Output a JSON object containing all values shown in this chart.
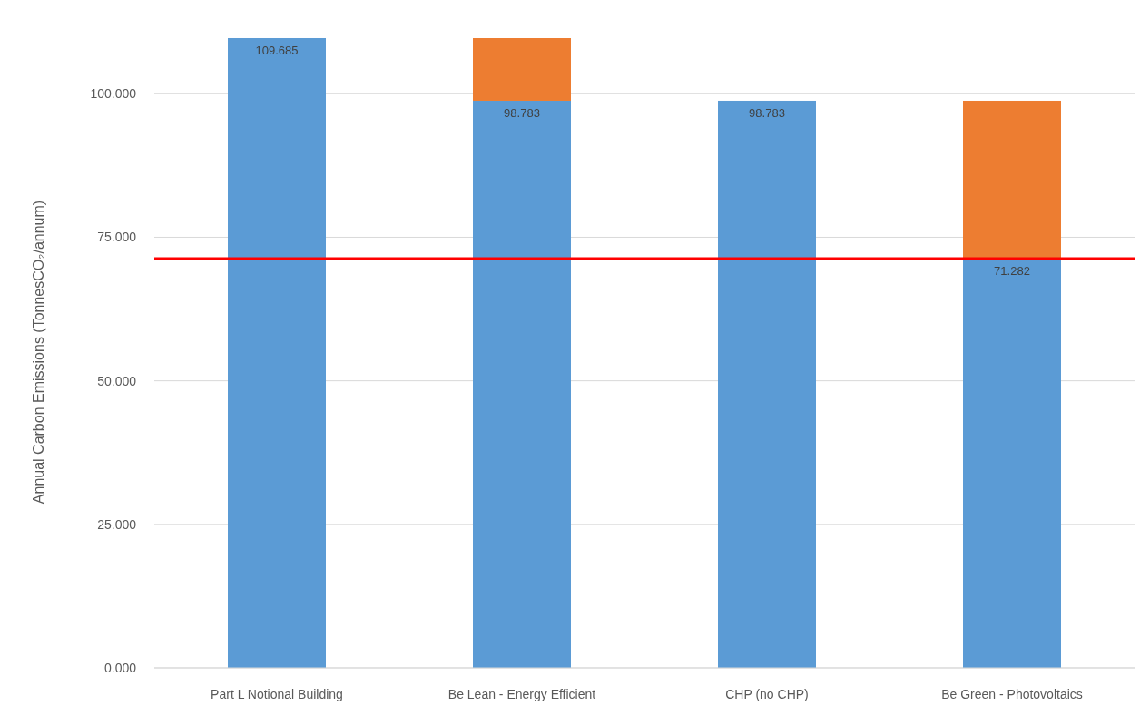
{
  "chart_data": {
    "type": "bar",
    "stacked": true,
    "ylabel": "Annual Carbon Emissions (TonnesCO₂/annum)",
    "categories": [
      "Part L Notional Building",
      "Be Lean - Energy Efficient",
      "CHP (no CHP)",
      "Be Green - Photovoltaics"
    ],
    "series": [
      {
        "color": "#5b9bd5",
        "values": [
          109.685,
          98.783,
          98.783,
          71.282
        ],
        "value_labels": [
          "109.685",
          "98.783",
          "98.783",
          "71.282"
        ]
      },
      {
        "color": "#ed7d31",
        "values": [
          0,
          10.9,
          0,
          27.5
        ]
      }
    ],
    "ylim": [
      0,
      110
    ],
    "yticks": [
      {
        "value": 0,
        "label": "0.000"
      },
      {
        "value": 25,
        "label": "25.000"
      },
      {
        "value": 50,
        "label": "50.000"
      },
      {
        "value": 75,
        "label": "75.000"
      },
      {
        "value": 100,
        "label": "100.000"
      }
    ],
    "grid": "y",
    "ref_lines": [
      {
        "axis": "y",
        "value": 71.3,
        "color": "#ff0000"
      }
    ]
  }
}
